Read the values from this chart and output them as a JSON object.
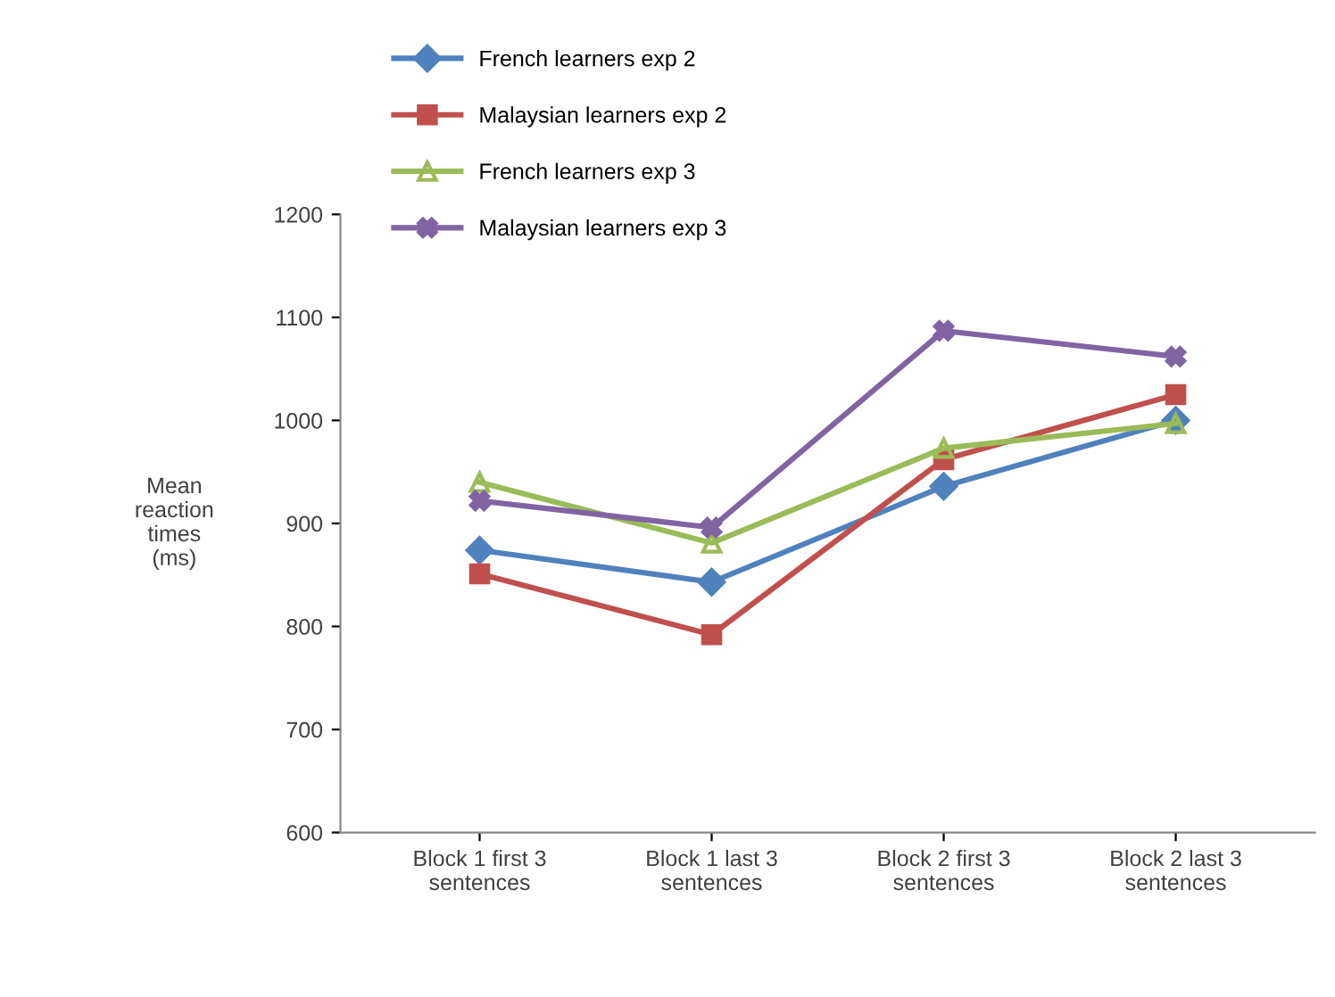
{
  "chart_data": {
    "type": "line",
    "ylabel": "Mean\nreaction\ntimes\n(ms)",
    "categories": [
      "Block 1 first 3\nsentences",
      "Block 1 last 3\nsentences",
      "Block 2 first 3\nsentences",
      "Block 2 last 3\nsentences"
    ],
    "series": [
      {
        "name": "French learners exp 2",
        "color": "#4f81bd",
        "marker": "diamond",
        "values": [
          874,
          843,
          936,
          1000
        ]
      },
      {
        "name": "Malaysian learners exp 2",
        "color": "#c0504d",
        "marker": "square",
        "values": [
          851,
          792,
          962,
          1025
        ]
      },
      {
        "name": "French learners exp 3",
        "color": "#9bbb59",
        "marker": "triangle",
        "values": [
          940,
          881,
          973,
          997
        ]
      },
      {
        "name": "Malaysian learners exp 3",
        "color": "#8064a2",
        "marker": "cross",
        "values": [
          922,
          896,
          1087,
          1062
        ]
      }
    ],
    "ylim": [
      600,
      1200
    ],
    "yticks": [
      600,
      700,
      800,
      900,
      1000,
      1100,
      1200
    ],
    "grid": false,
    "legend": "top left",
    "line_style": "solid"
  }
}
